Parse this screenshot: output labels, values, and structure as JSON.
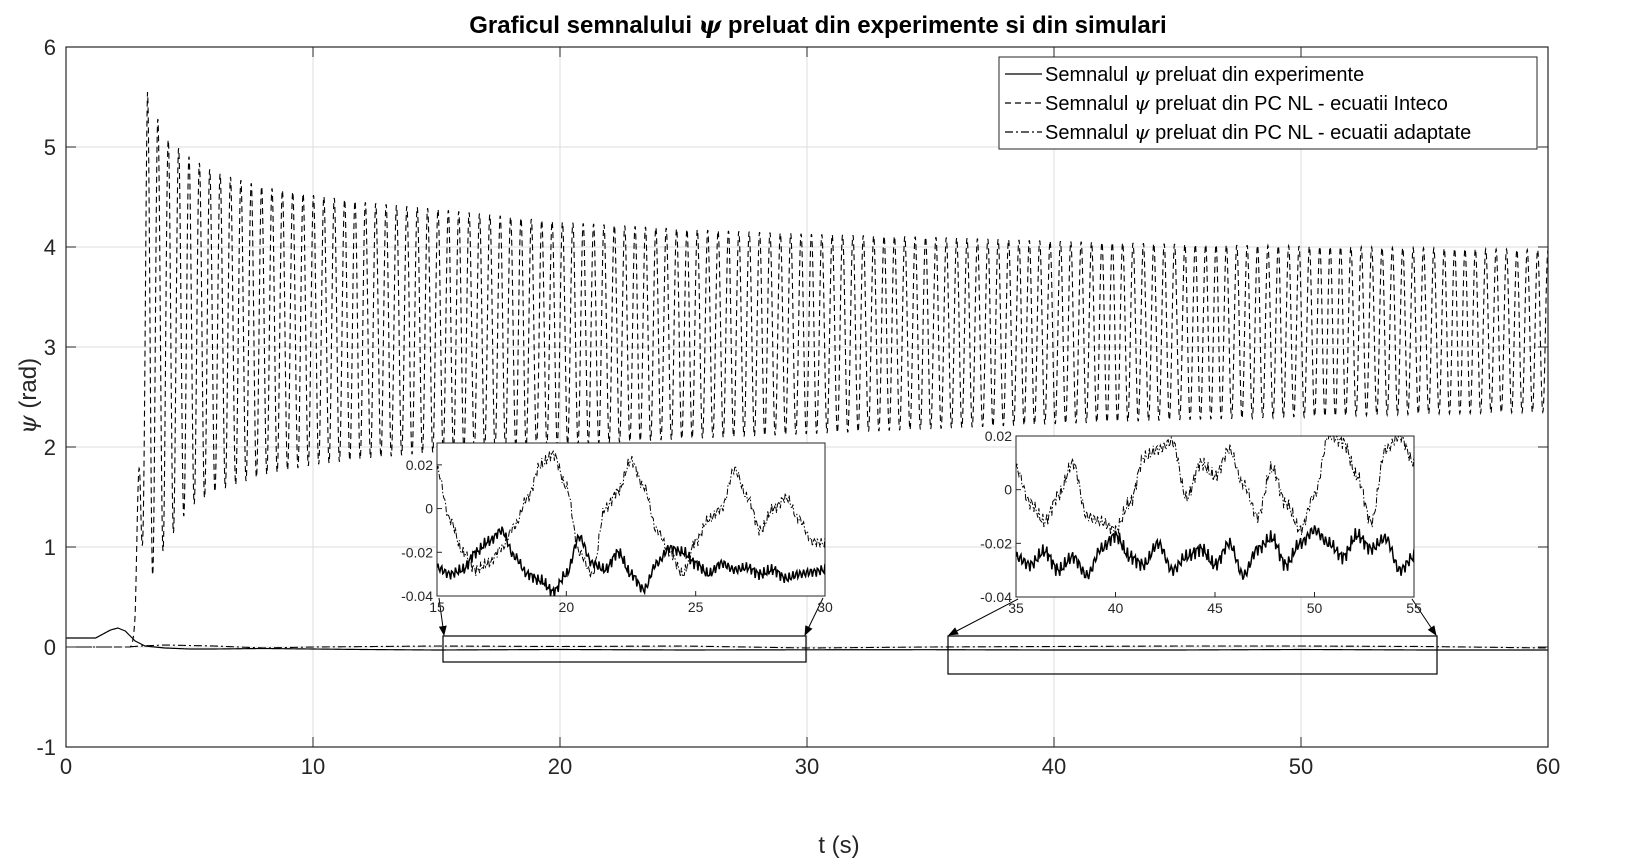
{
  "chart_data": {
    "type": "line",
    "title_parts": [
      "Graficul semnalului ",
      "ψ",
      " preluat din experimente si din simulari"
    ],
    "xlabel": "t (s)",
    "ylabel_parts": [
      "ψ",
      " (rad)"
    ],
    "xlim": [
      0,
      60
    ],
    "ylim": [
      -1,
      6
    ],
    "xticks": [
      0,
      10,
      20,
      30,
      40,
      50,
      60
    ],
    "yticks": [
      -1,
      0,
      1,
      2,
      3,
      4,
      5,
      6
    ],
    "grid": true,
    "legend_position": "top-right",
    "series": [
      {
        "name_parts": [
          "Semnalul ",
          "ψ",
          " preluat din experimente"
        ],
        "style": "solid",
        "color": "#000000",
        "x": [
          0,
          1.2,
          1.8,
          2.1,
          2.4,
          2.8,
          3.2,
          4,
          5,
          6,
          8,
          10,
          12,
          15,
          20,
          25,
          30,
          35,
          40,
          45,
          50,
          55,
          60
        ],
        "y": [
          0.09,
          0.09,
          0.17,
          0.19,
          0.16,
          0.06,
          0.01,
          -0.01,
          -0.02,
          -0.02,
          -0.015,
          -0.02,
          -0.025,
          -0.03,
          -0.025,
          -0.03,
          -0.028,
          -0.027,
          -0.03,
          -0.03,
          -0.025,
          -0.03,
          -0.03
        ]
      },
      {
        "name_parts": [
          "Semnalul ",
          "ψ",
          " preluat din PC NL - ecuatii Inteco"
        ],
        "style": "dashed",
        "color": "#000000",
        "x": [
          2.6,
          2.8,
          3.0,
          3.3,
          4,
          5,
          6,
          8,
          10,
          12,
          15,
          20,
          25,
          30,
          35,
          40,
          45,
          50,
          55,
          60
        ],
        "y_max": [
          0.05,
          0.8,
          3.5,
          5.55,
          5.1,
          4.9,
          4.75,
          4.6,
          4.52,
          4.45,
          4.38,
          4.25,
          4.18,
          4.13,
          4.1,
          4.06,
          4.03,
          4.01,
          3.99,
          3.97
        ],
        "y_min": [
          0.05,
          0.05,
          0.05,
          0.6,
          1.0,
          1.4,
          1.55,
          1.72,
          1.82,
          1.88,
          1.95,
          2.02,
          2.08,
          2.13,
          2.18,
          2.23,
          2.27,
          2.3,
          2.33,
          2.35
        ],
        "period_s": 0.42
      },
      {
        "name_parts": [
          "Semnalul ",
          "ψ",
          " preluat din PC NL - ecuatii adaptate"
        ],
        "style": "dashdot",
        "color": "#000000",
        "x": [
          0,
          2.5,
          3,
          4,
          6,
          8,
          10,
          15,
          20,
          25,
          30,
          35,
          40,
          45,
          50,
          55,
          60
        ],
        "y": [
          0,
          0,
          0.01,
          0.02,
          0.01,
          -0.01,
          0.0,
          0.01,
          0.005,
          0.01,
          -0.01,
          0.0,
          0.005,
          0.01,
          0.01,
          0.005,
          -0.01
        ]
      }
    ],
    "insets": [
      {
        "zoom_xlim": [
          15,
          30
        ],
        "zoom_ylim": [
          -0.04,
          0.03
        ],
        "xticks": [
          15,
          20,
          25,
          30
        ],
        "xticklabels": [
          "15",
          "20",
          "25",
          "30"
        ],
        "yticks": [
          0.02,
          0,
          -0.02,
          -0.04
        ],
        "yticklabels": [
          "0.02",
          "0",
          "-0.02",
          "-0.04"
        ],
        "series_solid_y": [
          -0.027,
          -0.03,
          -0.028,
          -0.02,
          -0.015,
          -0.01,
          -0.022,
          -0.03,
          -0.033,
          -0.038,
          -0.03,
          -0.013,
          -0.025,
          -0.028,
          -0.02,
          -0.03,
          -0.037,
          -0.025,
          -0.018,
          -0.02,
          -0.025,
          -0.03,
          -0.025,
          -0.028,
          -0.027,
          -0.03,
          -0.028,
          -0.032,
          -0.03,
          -0.029,
          -0.028
        ],
        "series_dashdot_y": [
          0.018,
          -0.005,
          -0.02,
          -0.028,
          -0.025,
          -0.018,
          -0.008,
          0.005,
          0.02,
          0.025,
          0.01,
          -0.02,
          -0.03,
          0.0,
          0.008,
          0.022,
          0.01,
          -0.01,
          -0.02,
          -0.03,
          -0.015,
          -0.005,
          0.0,
          0.018,
          0.005,
          -0.01,
          0.0,
          0.005,
          -0.005,
          -0.015,
          -0.016
        ]
      },
      {
        "zoom_xlim": [
          35,
          55
        ],
        "zoom_ylim": [
          -0.04,
          0.02
        ],
        "xticks": [
          35,
          40,
          45,
          50,
          55
        ],
        "xticklabels": [
          "35",
          "40",
          "45",
          "50",
          "55"
        ],
        "yticks": [
          0.02,
          0,
          -0.02,
          -0.04
        ],
        "yticklabels": [
          "0.02",
          "0",
          "-0.02",
          "-0.04"
        ],
        "series_solid_y": [
          -0.025,
          -0.028,
          -0.023,
          -0.03,
          -0.025,
          -0.032,
          -0.022,
          -0.017,
          -0.025,
          -0.028,
          -0.02,
          -0.03,
          -0.025,
          -0.022,
          -0.028,
          -0.02,
          -0.032,
          -0.022,
          -0.018,
          -0.028,
          -0.02,
          -0.015,
          -0.02,
          -0.025,
          -0.017,
          -0.022,
          -0.018,
          -0.03,
          -0.025
        ],
        "series_dashdot_y": [
          0.008,
          -0.005,
          -0.012,
          -0.002,
          0.01,
          -0.01,
          -0.012,
          -0.015,
          -0.005,
          0.012,
          0.015,
          0.018,
          -0.003,
          0.01,
          0.005,
          0.015,
          0.002,
          -0.01,
          0.008,
          -0.005,
          -0.015,
          -0.002,
          0.02,
          0.018,
          0.005,
          -0.012,
          0.015,
          0.02,
          0.01
        ]
      }
    ]
  }
}
